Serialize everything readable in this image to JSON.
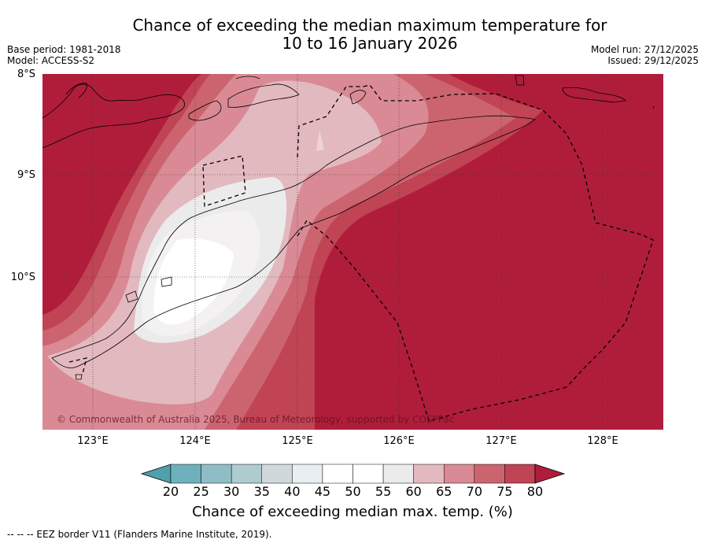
{
  "title_line1": "Chance of exceeding the median maximum temperature for",
  "title_line2": "10 to 16 January 2026",
  "base_period": "Base period: 1981-2018",
  "model": "Model: ACCESS-S2",
  "model_run": "Model run: 27/12/2025",
  "issued": "Issued: 29/12/2025",
  "lat_labels": [
    "8°S",
    "9°S",
    "10°S"
  ],
  "lon_labels": [
    "123°E",
    "124°E",
    "125°E",
    "126°E",
    "127°E",
    "128°E"
  ],
  "copyright": "© Commonwealth of Australia 2025, Bureau of Meteorology, supported by COSPPac",
  "colorbar": {
    "ticks": [
      "20",
      "25",
      "30",
      "35",
      "40",
      "45",
      "50",
      "55",
      "60",
      "65",
      "70",
      "75",
      "80"
    ],
    "colors": [
      "#4fa0aa",
      "#6eb0bb",
      "#8fbdc5",
      "#aecbcf",
      "#d0d8db",
      "#e8eef1",
      "#ffffff",
      "#ffffff",
      "#ecebec",
      "#e3b9c0",
      "#d98a95",
      "#cc6470",
      "#c04454",
      "#b01d3a"
    ],
    "label": "Chance of exceeding median max. temp. (%)"
  },
  "footnote": "--  --  -- EEZ border V11 (Flanders Marine Institute, 2019)."
}
